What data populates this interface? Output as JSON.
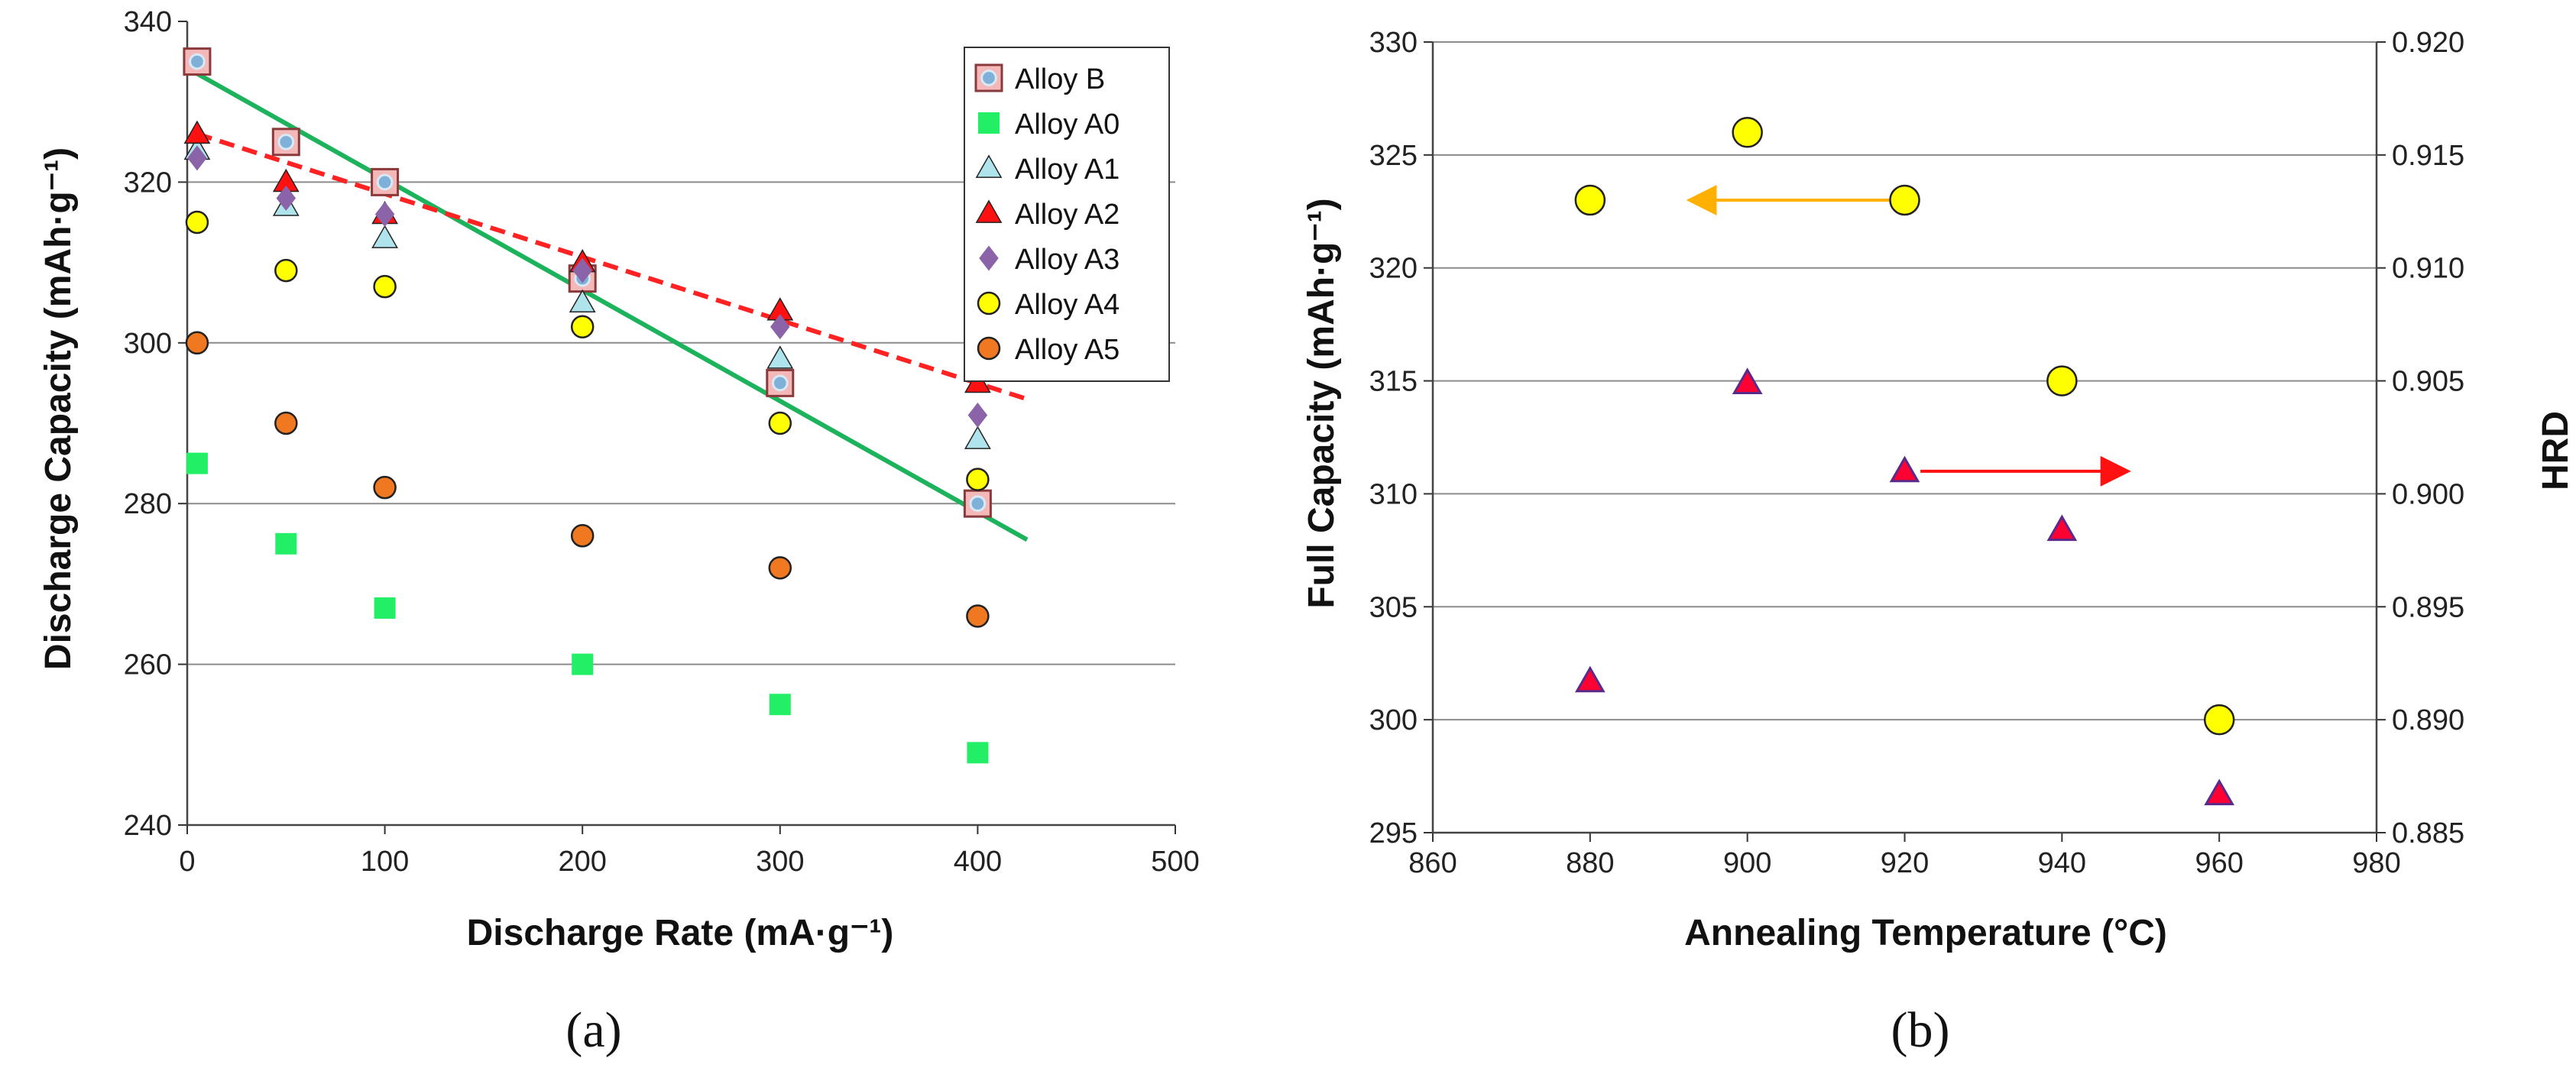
{
  "chart_data": [
    {
      "type": "scatter",
      "panel_label": "(a)",
      "xlabel": "Discharge Rate (mA·g⁻¹)",
      "ylabel": "Discharge Capacity (mAh·g⁻¹)",
      "xlim": [
        0,
        500
      ],
      "ylim": [
        240,
        340
      ],
      "xticks": [
        "0",
        "100",
        "200",
        "300",
        "400",
        "500"
      ],
      "yticks": [
        "240",
        "260",
        "280",
        "300",
        "320",
        "340"
      ],
      "grid": "horizontal",
      "legend_position": "top-right",
      "series": [
        {
          "name": "Alloy B",
          "marker": "square-dot",
          "color": "#f4b8b8",
          "x": [
            5,
            50,
            100,
            200,
            300,
            400
          ],
          "y": [
            335,
            325,
            320,
            308,
            295,
            280
          ]
        },
        {
          "name": "Alloy A0",
          "marker": "square",
          "color": "#22ee66",
          "x": [
            5,
            50,
            100,
            200,
            300,
            400
          ],
          "y": [
            285,
            275,
            267,
            260,
            255,
            249
          ]
        },
        {
          "name": "Alloy A1",
          "marker": "triangle",
          "color": "#b0e4ec",
          "x": [
            5,
            50,
            100,
            200,
            300,
            400
          ],
          "y": [
            324,
            317,
            313,
            305,
            298,
            288
          ]
        },
        {
          "name": "Alloy A2",
          "marker": "triangle",
          "color": "#ff1111",
          "x": [
            5,
            50,
            100,
            200,
            300,
            400
          ],
          "y": [
            326,
            320,
            316,
            310,
            304,
            295
          ]
        },
        {
          "name": "Alloy A3",
          "marker": "diamond",
          "color": "#8a63a8",
          "x": [
            5,
            50,
            100,
            200,
            300,
            400
          ],
          "y": [
            323,
            318,
            316,
            309,
            302,
            291
          ]
        },
        {
          "name": "Alloy A4",
          "marker": "circle",
          "color": "#ffff00",
          "x": [
            5,
            50,
            100,
            200,
            300,
            400
          ],
          "y": [
            315,
            309,
            307,
            302,
            290,
            283
          ]
        },
        {
          "name": "Alloy A5",
          "marker": "circle",
          "color": "#f07820",
          "x": [
            5,
            50,
            100,
            200,
            300,
            400
          ],
          "y": [
            300,
            290,
            282,
            276,
            272,
            266
          ]
        }
      ],
      "trendlines": [
        {
          "name": "Alloy B fit",
          "color": "#1db35c",
          "style": "solid",
          "x": [
            5,
            425
          ],
          "y": [
            333.5,
            275.5
          ]
        },
        {
          "name": "Alloy A2 fit",
          "color": "#ff2222",
          "style": "dashed",
          "x": [
            5,
            425
          ],
          "y": [
            326,
            293
          ]
        }
      ]
    },
    {
      "type": "scatter",
      "panel_label": "(b)",
      "xlabel": "Annealing Temperature (°C)",
      "ylabel": "Full Capacity (mAh·g⁻¹)",
      "y2label": "HRD",
      "xlim": [
        860,
        980
      ],
      "ylim": [
        295,
        330
      ],
      "y2lim": [
        0.885,
        0.92
      ],
      "xticks": [
        "860",
        "880",
        "900",
        "920",
        "940",
        "960",
        "980"
      ],
      "yticks": [
        "295",
        "300",
        "305",
        "310",
        "315",
        "320",
        "325",
        "330"
      ],
      "y2ticks": [
        "0.885",
        "0.890",
        "0.895",
        "0.900",
        "0.905",
        "0.910",
        "0.915",
        "0.920"
      ],
      "grid": "horizontal",
      "series": [
        {
          "name": "Full Capacity",
          "axis": "left",
          "marker": "circle",
          "color": "#ffff00",
          "x": [
            880,
            900,
            920,
            940,
            960
          ],
          "y": [
            323,
            326,
            323,
            315,
            300
          ]
        },
        {
          "name": "HRD",
          "axis": "right",
          "marker": "triangle",
          "color": "#ff0033",
          "x": [
            880,
            900,
            920,
            940,
            960
          ],
          "y": [
            0.8917,
            0.9049,
            0.901,
            0.8984,
            0.8867
          ]
        }
      ],
      "arrows": [
        {
          "name": "capacity-axis-arrow",
          "color": "#ffb000",
          "from": [
            920,
            323
          ],
          "to": [
            893,
            323
          ],
          "axis": "left"
        },
        {
          "name": "hrd-axis-arrow",
          "color": "#ff1111",
          "from": [
            922,
            0.901
          ],
          "to": [
            948,
            0.901
          ],
          "axis": "right"
        }
      ]
    }
  ]
}
